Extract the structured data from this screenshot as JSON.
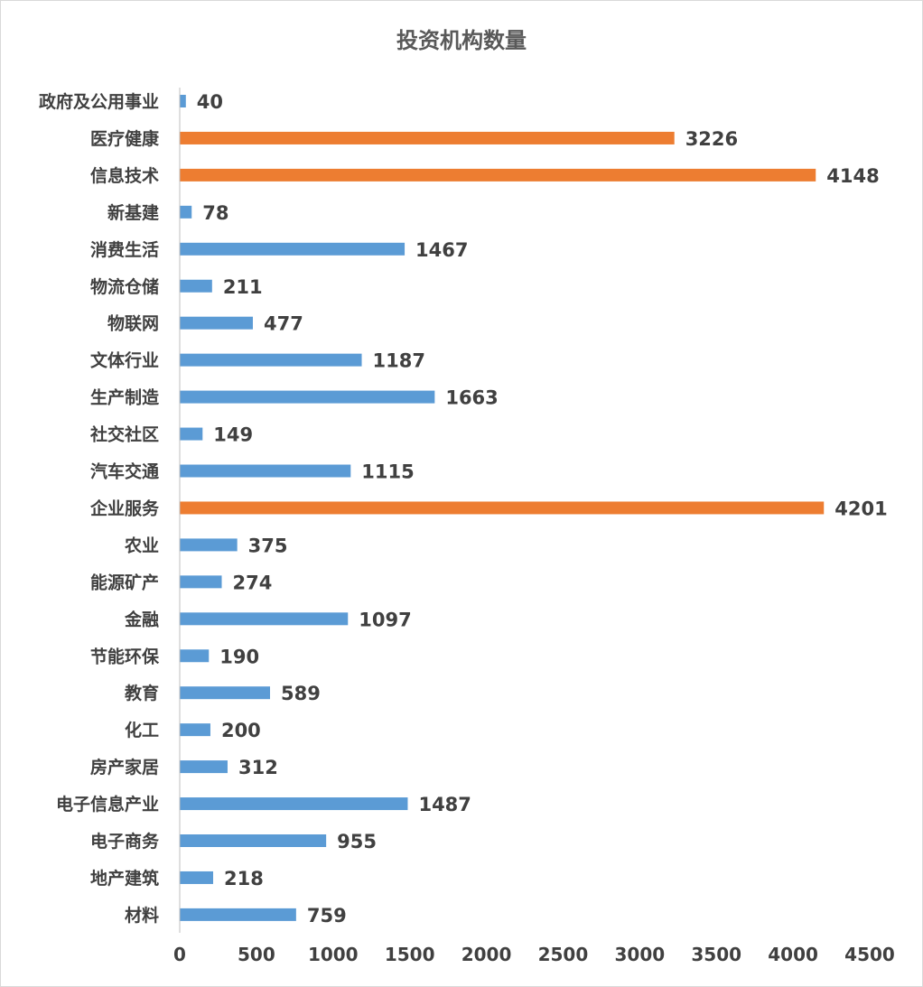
{
  "chart_data": {
    "type": "bar",
    "orientation": "horizontal",
    "title": "投资机构数量",
    "xlabel": "",
    "ylabel": "",
    "xlim": [
      0,
      4500
    ],
    "x_ticks": [
      0,
      500,
      1000,
      1500,
      2000,
      2500,
      3000,
      3500,
      4000,
      4500
    ],
    "grid": false,
    "legend": "none",
    "data_labels": true,
    "colors": {
      "default": "#5b9bd5",
      "highlight": "#ed7d31",
      "text": "#404040",
      "title": "#595959",
      "axis": "#bfbfbf"
    },
    "highlighted": [
      "医疗健康",
      "信息技术",
      "企业服务"
    ],
    "categories": [
      "政府及公用事业",
      "医疗健康",
      "信息技术",
      "新基建",
      "消费生活",
      "物流仓储",
      "物联网",
      "文体行业",
      "生产制造",
      "社交社区",
      "汽车交通",
      "企业服务",
      "农业",
      "能源矿产",
      "金融",
      "节能环保",
      "教育",
      "化工",
      "房产家居",
      "电子信息产业",
      "电子商务",
      "地产建筑",
      "材料"
    ],
    "values": [
      40,
      3226,
      4148,
      78,
      1467,
      211,
      477,
      1187,
      1663,
      149,
      1115,
      4201,
      375,
      274,
      1097,
      190,
      589,
      200,
      312,
      1487,
      955,
      218,
      759
    ]
  }
}
